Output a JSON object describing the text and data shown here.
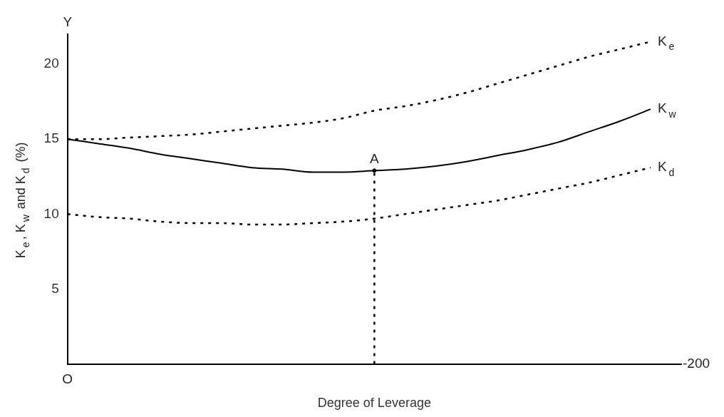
{
  "chart_data": {
    "type": "line",
    "xlabel": "Degree of Leverage",
    "ylabel": "K$_{e}$, K$_{w}$ and K$_{d}$ (%)",
    "categories": [
      null,
      null,
      null,
      null,
      null,
      null,
      null,
      null,
      null,
      null,
      null,
      null,
      null,
      null,
      null,
      null,
      null,
      null,
      null,
      null,
      null
    ],
    "ylim": [
      0,
      22
    ],
    "yticks": [
      5,
      10,
      15,
      20
    ],
    "grid": false,
    "legend": false,
    "marker": "none",
    "series": [
      {
        "name": "K$_{e}$",
        "color": "#000000",
        "line_style": "dotted",
        "values": [
          15.0,
          15.0,
          15.1,
          15.2,
          15.3,
          15.5,
          15.7,
          15.9,
          16.1,
          16.4,
          16.9,
          17.2,
          17.6,
          18.1,
          18.7,
          19.3,
          19.9,
          20.5,
          21.0,
          21.5,
          null
        ]
      },
      {
        "name": "K$_{w}$",
        "color": "#000000",
        "line_style": "solid",
        "values": [
          15.0,
          14.7,
          14.4,
          14.0,
          13.7,
          13.4,
          13.1,
          13.0,
          12.8,
          12.8,
          12.9,
          13.0,
          13.2,
          13.5,
          13.9,
          14.3,
          14.8,
          15.5,
          16.2,
          17.0,
          null
        ]
      },
      {
        "name": "K$_{d}$",
        "color": "#000000",
        "line_style": "dotted",
        "values": [
          10.0,
          9.8,
          9.7,
          9.5,
          9.4,
          9.4,
          9.3,
          9.3,
          9.4,
          9.5,
          9.7,
          10.0,
          10.3,
          10.6,
          10.9,
          11.3,
          11.7,
          12.1,
          12.6,
          13.1,
          null
        ]
      },
      {
        "type": "lollipop",
        "color": "#000000",
        "line_style": "dotted",
        "marker": "circle",
        "values": [
          null,
          null,
          null,
          null,
          null,
          null,
          null,
          null,
          null,
          null,
          12.9,
          null,
          null,
          null,
          null,
          null,
          null,
          null,
          null,
          null,
          null
        ]
      }
    ],
    "annotations": [
      "Y",
      "A",
      "-200",
      "O"
    ]
  }
}
